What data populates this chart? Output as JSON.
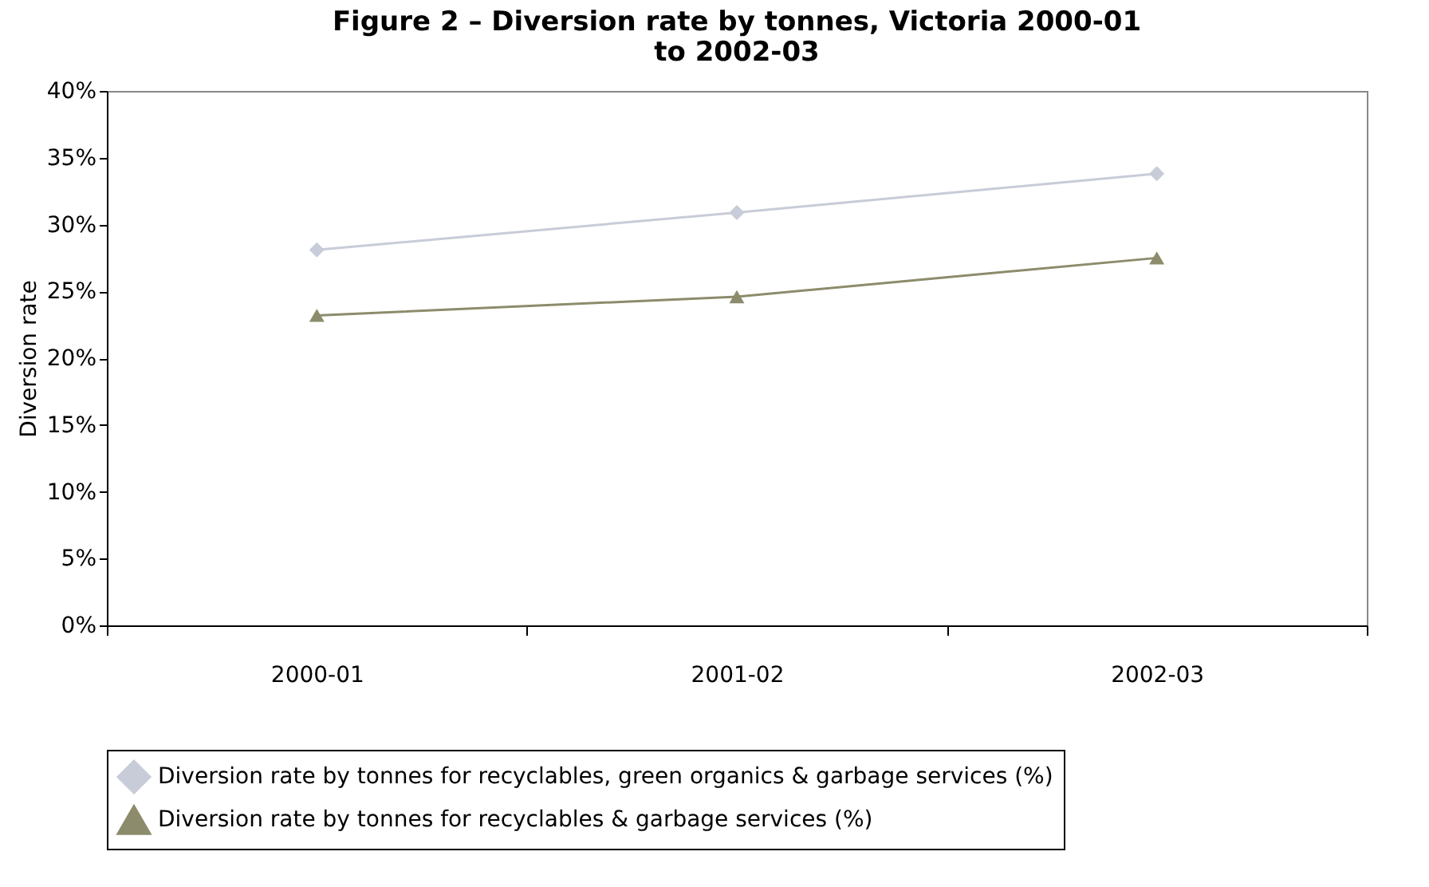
{
  "chart_data": {
    "type": "line",
    "title": "Figure 2 – Diversion rate by tonnes, Victoria 2000-01 to 2002-03",
    "ylabel": "Diversion rate",
    "categories": [
      "2000-01",
      "2001-02",
      "2002-03"
    ],
    "series": [
      {
        "name": "Diversion rate by tonnes for recyclables, green organics & garbage services (%)",
        "color": "#c8ccd8",
        "marker": "diamond",
        "values": [
          28.1,
          30.9,
          33.8
        ]
      },
      {
        "name": "Diversion rate by tonnes for recyclables & garbage services (%)",
        "color": "#8c8c6c",
        "marker": "triangle",
        "values": [
          23.2,
          24.6,
          27.5
        ]
      }
    ],
    "ylim": [
      0,
      40
    ],
    "yticks": [
      {
        "value": 0,
        "label": "0%"
      },
      {
        "value": 5,
        "label": "5%"
      },
      {
        "value": 10,
        "label": "10%"
      },
      {
        "value": 15,
        "label": "15%"
      },
      {
        "value": 20,
        "label": "20%"
      },
      {
        "value": 25,
        "label": "25%"
      },
      {
        "value": 30,
        "label": "30%"
      },
      {
        "value": 35,
        "label": "35%"
      },
      {
        "value": 40,
        "label": "40%"
      }
    ],
    "grid": false,
    "legend": "bottom",
    "line_style": "solid"
  }
}
